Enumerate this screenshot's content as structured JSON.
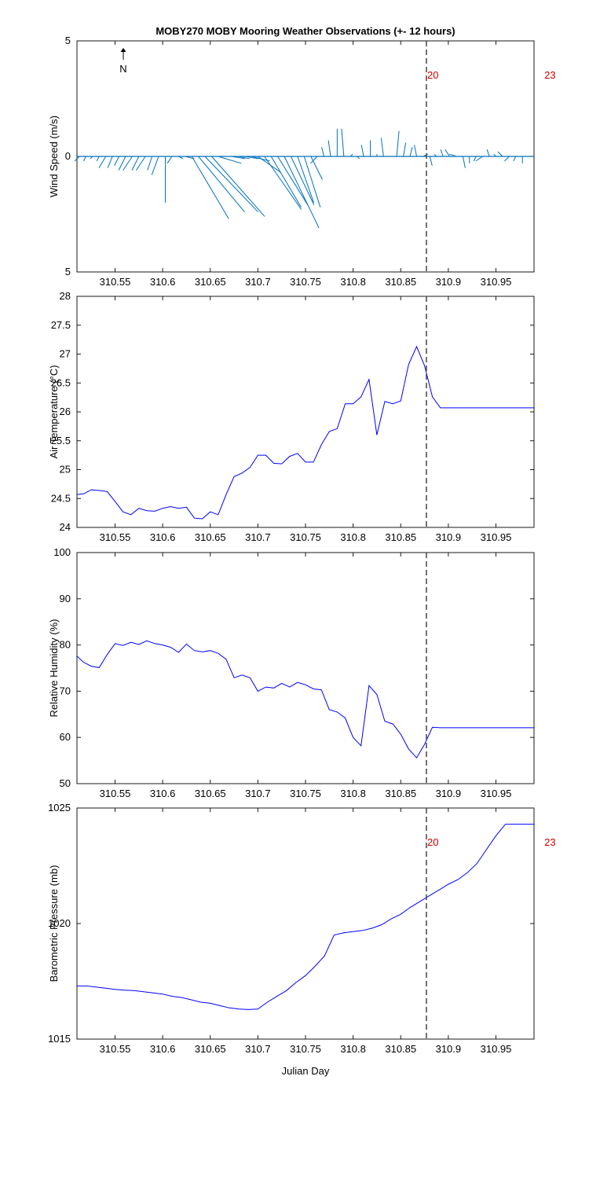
{
  "colors": {
    "series": "#0000ff",
    "wind": "#0072bd",
    "marker_line": "#444444",
    "hour_label": "#cc0000"
  },
  "figure": {
    "title": "MOBY270 MOBY Mooring Weather Observations (+- 12 hours)",
    "north_label": "N"
  },
  "chart_data": [
    {
      "type": "line",
      "subtype": "wind-vector",
      "ylabel": "Wind Speed (m/s)",
      "ylim": [
        -5,
        5
      ],
      "ytick_labels": [
        "5",
        "0",
        "5"
      ],
      "xlim": [
        310.51,
        310.99
      ],
      "xticks": [
        310.55,
        310.6,
        310.65,
        310.7,
        310.75,
        310.8,
        310.85,
        310.9,
        310.95
      ],
      "xtick_labels": [
        "310.55",
        "310.6",
        "310.65",
        "310.7",
        "310.75",
        "310.8",
        "310.85",
        "310.9",
        "310.95"
      ],
      "xlabel": "",
      "marker_x": 310.877,
      "hour_labels": [
        {
          "x": 310.877,
          "text": "20"
        },
        {
          "x": 311.0,
          "text": "23"
        }
      ],
      "series": [
        {
          "x": [
            310.5125,
            310.5194,
            310.5264,
            310.5333,
            310.5403,
            310.5472,
            310.5542,
            310.5611,
            310.5681,
            310.575,
            310.5819,
            310.5889,
            310.5958,
            310.6028,
            310.6097,
            310.6167,
            310.6236,
            310.6306,
            310.6375,
            310.6444,
            310.6514,
            310.6583,
            310.6653,
            310.6722,
            310.6792,
            310.6861,
            310.6931,
            310.7,
            310.7069,
            310.7139,
            310.7208,
            310.7278,
            310.7347,
            310.7417,
            310.7486,
            310.7556,
            310.7625,
            310.7694,
            310.7764,
            310.7833,
            310.7903,
            310.7972,
            310.8042,
            310.8111,
            310.8181,
            310.825,
            310.8319,
            310.8389,
            310.8458,
            310.8528,
            310.8597,
            310.8667,
            310.8736,
            310.8806,
            310.8875,
            310.8944,
            310.9014,
            310.9083,
            310.9153,
            310.9222,
            310.9292,
            310.9361,
            310.9431,
            310.95,
            310.9569,
            310.9639,
            310.9708,
            310.9778,
            310.9847
          ],
          "u": [
            -0.2,
            -0.1,
            -0.1,
            -0.1,
            -0.3,
            -0.2,
            -0.2,
            -0.3,
            -0.4,
            -0.3,
            -0.4,
            -0.2,
            -0.3,
            0.0,
            -0.2,
            0.2,
            0.4,
            1.6,
            2.0,
            2.3,
            2.3,
            1.0,
            1.0,
            0.6,
            0.5,
            0.6,
            0.8,
            1.0,
            1.6,
            1.3,
            1.3,
            1.5,
            1.0,
            0.7,
            0.7,
            0.5,
            -0.3,
            -0.1,
            -0.1,
            0.0,
            -0.1,
            0.1,
            0.1,
            -0.1,
            0.0,
            0.0,
            -0.1,
            -0.1,
            0.1,
            0.1,
            0.1,
            -0.1,
            0.2,
            0.1,
            -0.1,
            -0.1,
            -0.2,
            -0.3,
            0.1,
            0.0,
            -0.1,
            -0.3,
            -0.1,
            -0.1,
            -0.2,
            -0.2,
            -0.1,
            0.0,
            0.1
          ],
          "v": [
            -0.2,
            -0.2,
            -0.1,
            -0.2,
            -0.5,
            -0.5,
            -0.4,
            -0.6,
            -0.6,
            -0.6,
            -0.6,
            -0.6,
            -0.8,
            -2.0,
            -0.3,
            -0.1,
            -0.1,
            -2.7,
            -2.4,
            -2.4,
            -2.6,
            -0.3,
            0.0,
            -0.1,
            -0.1,
            -0.1,
            -0.2,
            -0.7,
            -2.3,
            -2.2,
            -2.1,
            -3.1,
            -2.1,
            -2.0,
            -2.2,
            -1.0,
            -0.3,
            0.4,
            0.7,
            1.2,
            1.2,
            0.1,
            -0.1,
            0.5,
            0.7,
            0.1,
            0.8,
            0.0,
            1.1,
            0.6,
            0.4,
            0.5,
            0.1,
            -0.4,
            0.1,
            0.3,
            0.3,
            0.1,
            -0.5,
            -0.3,
            -0.2,
            -0.2,
            0.3,
            0.1,
            0.2,
            -0.2,
            -0.2,
            -0.3,
            0.0
          ]
        }
      ]
    },
    {
      "type": "line",
      "ylabel": "Air Temperature (°C)",
      "ylim": [
        24,
        28
      ],
      "yticks": [
        24,
        24.5,
        25,
        25.5,
        26,
        26.5,
        27,
        27.5,
        28
      ],
      "ytick_labels": [
        "24",
        "24.5",
        "25",
        "25.5",
        "26",
        "26.5",
        "27",
        "27.5",
        "28"
      ],
      "xlim": [
        310.51,
        310.99
      ],
      "xticks": [
        310.55,
        310.6,
        310.65,
        310.7,
        310.75,
        310.8,
        310.85,
        310.9,
        310.95
      ],
      "xtick_labels": [
        "310.55",
        "310.6",
        "310.65",
        "310.7",
        "310.75",
        "310.8",
        "310.85",
        "310.9",
        "310.95"
      ],
      "xlabel": "",
      "marker_x": 310.877,
      "series": [
        {
          "x": [
            310.51,
            310.5167,
            310.525,
            310.5333,
            310.5417,
            310.55,
            310.5583,
            310.5667,
            310.575,
            310.5833,
            310.5917,
            310.6,
            310.6083,
            310.6167,
            310.625,
            310.6333,
            310.6417,
            310.65,
            310.6583,
            310.6667,
            310.675,
            310.6833,
            310.6917,
            310.7,
            310.7083,
            310.7167,
            310.725,
            310.7333,
            310.7417,
            310.75,
            310.7583,
            310.7667,
            310.775,
            310.7833,
            310.7917,
            310.8,
            310.8083,
            310.8167,
            310.825,
            310.8333,
            310.8417,
            310.85,
            310.8583,
            310.8667,
            310.875,
            310.8833,
            310.8917,
            310.9,
            310.9083,
            310.9167,
            310.925,
            310.9333,
            310.9417,
            310.95,
            310.9583,
            310.9667,
            310.975,
            310.9833,
            310.99
          ],
          "y": [
            24.57,
            24.58,
            24.65,
            24.64,
            24.62,
            24.45,
            24.27,
            24.22,
            24.33,
            24.29,
            24.28,
            24.33,
            24.36,
            24.33,
            24.35,
            24.16,
            24.15,
            24.27,
            24.22,
            24.57,
            24.88,
            24.94,
            25.04,
            25.25,
            25.25,
            25.11,
            25.1,
            25.23,
            25.28,
            25.13,
            25.13,
            25.43,
            25.66,
            25.71,
            26.14,
            26.14,
            26.26,
            26.56,
            25.6,
            26.18,
            26.14,
            26.19,
            26.82,
            27.13,
            26.8,
            26.26,
            26.07,
            26.07,
            26.07,
            26.07,
            26.07,
            26.07,
            26.07,
            26.07,
            26.07,
            26.07,
            26.07,
            26.07,
            26.07
          ]
        }
      ]
    },
    {
      "type": "line",
      "ylabel": "Relative Humidity (%)",
      "ylim": [
        50,
        100
      ],
      "yticks": [
        50,
        60,
        70,
        80,
        90,
        100
      ],
      "ytick_labels": [
        "50",
        "60",
        "70",
        "80",
        "90",
        "100"
      ],
      "xlim": [
        310.51,
        310.99
      ],
      "xticks": [
        310.55,
        310.6,
        310.65,
        310.7,
        310.75,
        310.8,
        310.85,
        310.9,
        310.95
      ],
      "xtick_labels": [
        "310.55",
        "310.6",
        "310.65",
        "310.7",
        "310.75",
        "310.8",
        "310.85",
        "310.9",
        "310.95"
      ],
      "xlabel": "",
      "marker_x": 310.877,
      "series": [
        {
          "x": [
            310.51,
            310.5167,
            310.525,
            310.5333,
            310.5417,
            310.55,
            310.5583,
            310.5667,
            310.575,
            310.5833,
            310.5917,
            310.6,
            310.6083,
            310.6167,
            310.625,
            310.6333,
            310.6417,
            310.65,
            310.6583,
            310.6667,
            310.675,
            310.6833,
            310.6917,
            310.7,
            310.7083,
            310.7167,
            310.725,
            310.7333,
            310.7417,
            310.75,
            310.7583,
            310.7667,
            310.775,
            310.7833,
            310.7917,
            310.8,
            310.8083,
            310.8167,
            310.825,
            310.8333,
            310.8417,
            310.85,
            310.8583,
            310.8667,
            310.875,
            310.8833,
            310.8917,
            310.9,
            310.9083,
            310.9167,
            310.925,
            310.9333,
            310.9417,
            310.95,
            310.9583,
            310.9667,
            310.975,
            310.9833,
            310.99
          ],
          "y": [
            77.6,
            76.3,
            75.4,
            75.1,
            77.9,
            80.3,
            79.9,
            80.6,
            80.1,
            80.9,
            80.3,
            80.0,
            79.5,
            78.4,
            80.2,
            78.8,
            78.5,
            78.8,
            78.2,
            76.9,
            72.9,
            73.5,
            72.9,
            70.0,
            70.9,
            70.7,
            71.7,
            70.9,
            71.9,
            71.4,
            70.5,
            70.3,
            66.0,
            65.5,
            64.2,
            60.0,
            58.2,
            71.2,
            69.3,
            63.5,
            62.9,
            60.7,
            57.5,
            55.6,
            58.5,
            62.2,
            62.1,
            62.1,
            62.1,
            62.1,
            62.1,
            62.1,
            62.1,
            62.1,
            62.1,
            62.1,
            62.1,
            62.1,
            62.1
          ]
        }
      ]
    },
    {
      "type": "line",
      "ylabel": "Barometric Pressure (mb)",
      "ylim": [
        1015,
        1025
      ],
      "yticks": [
        1015,
        1020,
        1025
      ],
      "ytick_labels": [
        "1015",
        "1020",
        "1025"
      ],
      "xlim": [
        310.51,
        310.99
      ],
      "xticks": [
        310.55,
        310.6,
        310.65,
        310.7,
        310.75,
        310.8,
        310.85,
        310.9,
        310.95
      ],
      "xtick_labels": [
        "310.55",
        "310.6",
        "310.65",
        "310.7",
        "310.75",
        "310.8",
        "310.85",
        "310.9",
        "310.95"
      ],
      "xlabel": "Julian Day",
      "marker_x": 310.877,
      "hour_labels": [
        {
          "x": 310.877,
          "text": "20"
        },
        {
          "x": 311.0,
          "text": "23"
        }
      ],
      "series": [
        {
          "x": [
            310.51,
            310.52,
            310.53,
            310.54,
            310.55,
            310.56,
            310.57,
            310.58,
            310.59,
            310.6,
            310.61,
            310.62,
            310.63,
            310.64,
            310.65,
            310.66,
            310.67,
            310.68,
            310.69,
            310.7,
            310.71,
            310.72,
            310.73,
            310.74,
            310.75,
            310.76,
            310.77,
            310.78,
            310.79,
            310.8,
            310.81,
            310.82,
            310.83,
            310.84,
            310.85,
            310.86,
            310.87,
            310.88,
            310.89,
            310.9,
            310.91,
            310.92,
            310.93,
            310.94,
            310.95,
            310.96,
            310.97,
            310.98,
            310.99
          ],
          "y": [
            1017.3,
            1017.3,
            1017.25,
            1017.2,
            1017.15,
            1017.12,
            1017.1,
            1017.05,
            1017.0,
            1016.95,
            1016.85,
            1016.8,
            1016.7,
            1016.6,
            1016.55,
            1016.45,
            1016.35,
            1016.3,
            1016.28,
            1016.3,
            1016.6,
            1016.85,
            1017.1,
            1017.45,
            1017.75,
            1018.15,
            1018.6,
            1019.5,
            1019.6,
            1019.65,
            1019.7,
            1019.8,
            1019.95,
            1020.2,
            1020.4,
            1020.7,
            1020.95,
            1021.2,
            1021.45,
            1021.7,
            1021.9,
            1022.2,
            1022.6,
            1023.2,
            1023.8,
            1024.3,
            1024.3,
            1024.3,
            1024.3
          ]
        }
      ]
    }
  ]
}
